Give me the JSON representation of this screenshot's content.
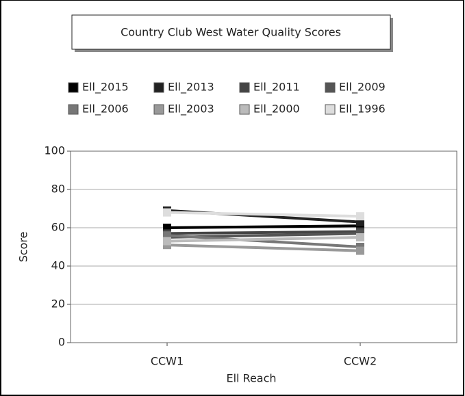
{
  "chart_data": {
    "type": "line",
    "title": "Country Club West Water Quality Scores",
    "x_label": "Ell Reach",
    "y_label": "Score",
    "categories": [
      "CCW1",
      "CCW2"
    ],
    "series": [
      {
        "name": "Ell_2015",
        "color": "#000000",
        "values": [
          60,
          61
        ]
      },
      {
        "name": "Ell_2013",
        "color": "#222222",
        "values": [
          69,
          63
        ]
      },
      {
        "name": "Ell_2011",
        "color": "#444444",
        "values": [
          57,
          58
        ]
      },
      {
        "name": "Ell_2009",
        "color": "#555555",
        "values": [
          55,
          57
        ]
      },
      {
        "name": "Ell_2006",
        "color": "#777777",
        "values": [
          56,
          50
        ]
      },
      {
        "name": "Ell_2003",
        "color": "#999999",
        "values": [
          51,
          48
        ]
      },
      {
        "name": "Ell_2000",
        "color": "#bbbbbb",
        "values": [
          53,
          55
        ]
      },
      {
        "name": "Ell_1996",
        "color": "#dddddd",
        "values": [
          68,
          66
        ]
      }
    ],
    "ylim": [
      0,
      100
    ],
    "yticks": [
      0,
      20,
      40,
      60,
      80,
      100
    ],
    "grid": true
  }
}
